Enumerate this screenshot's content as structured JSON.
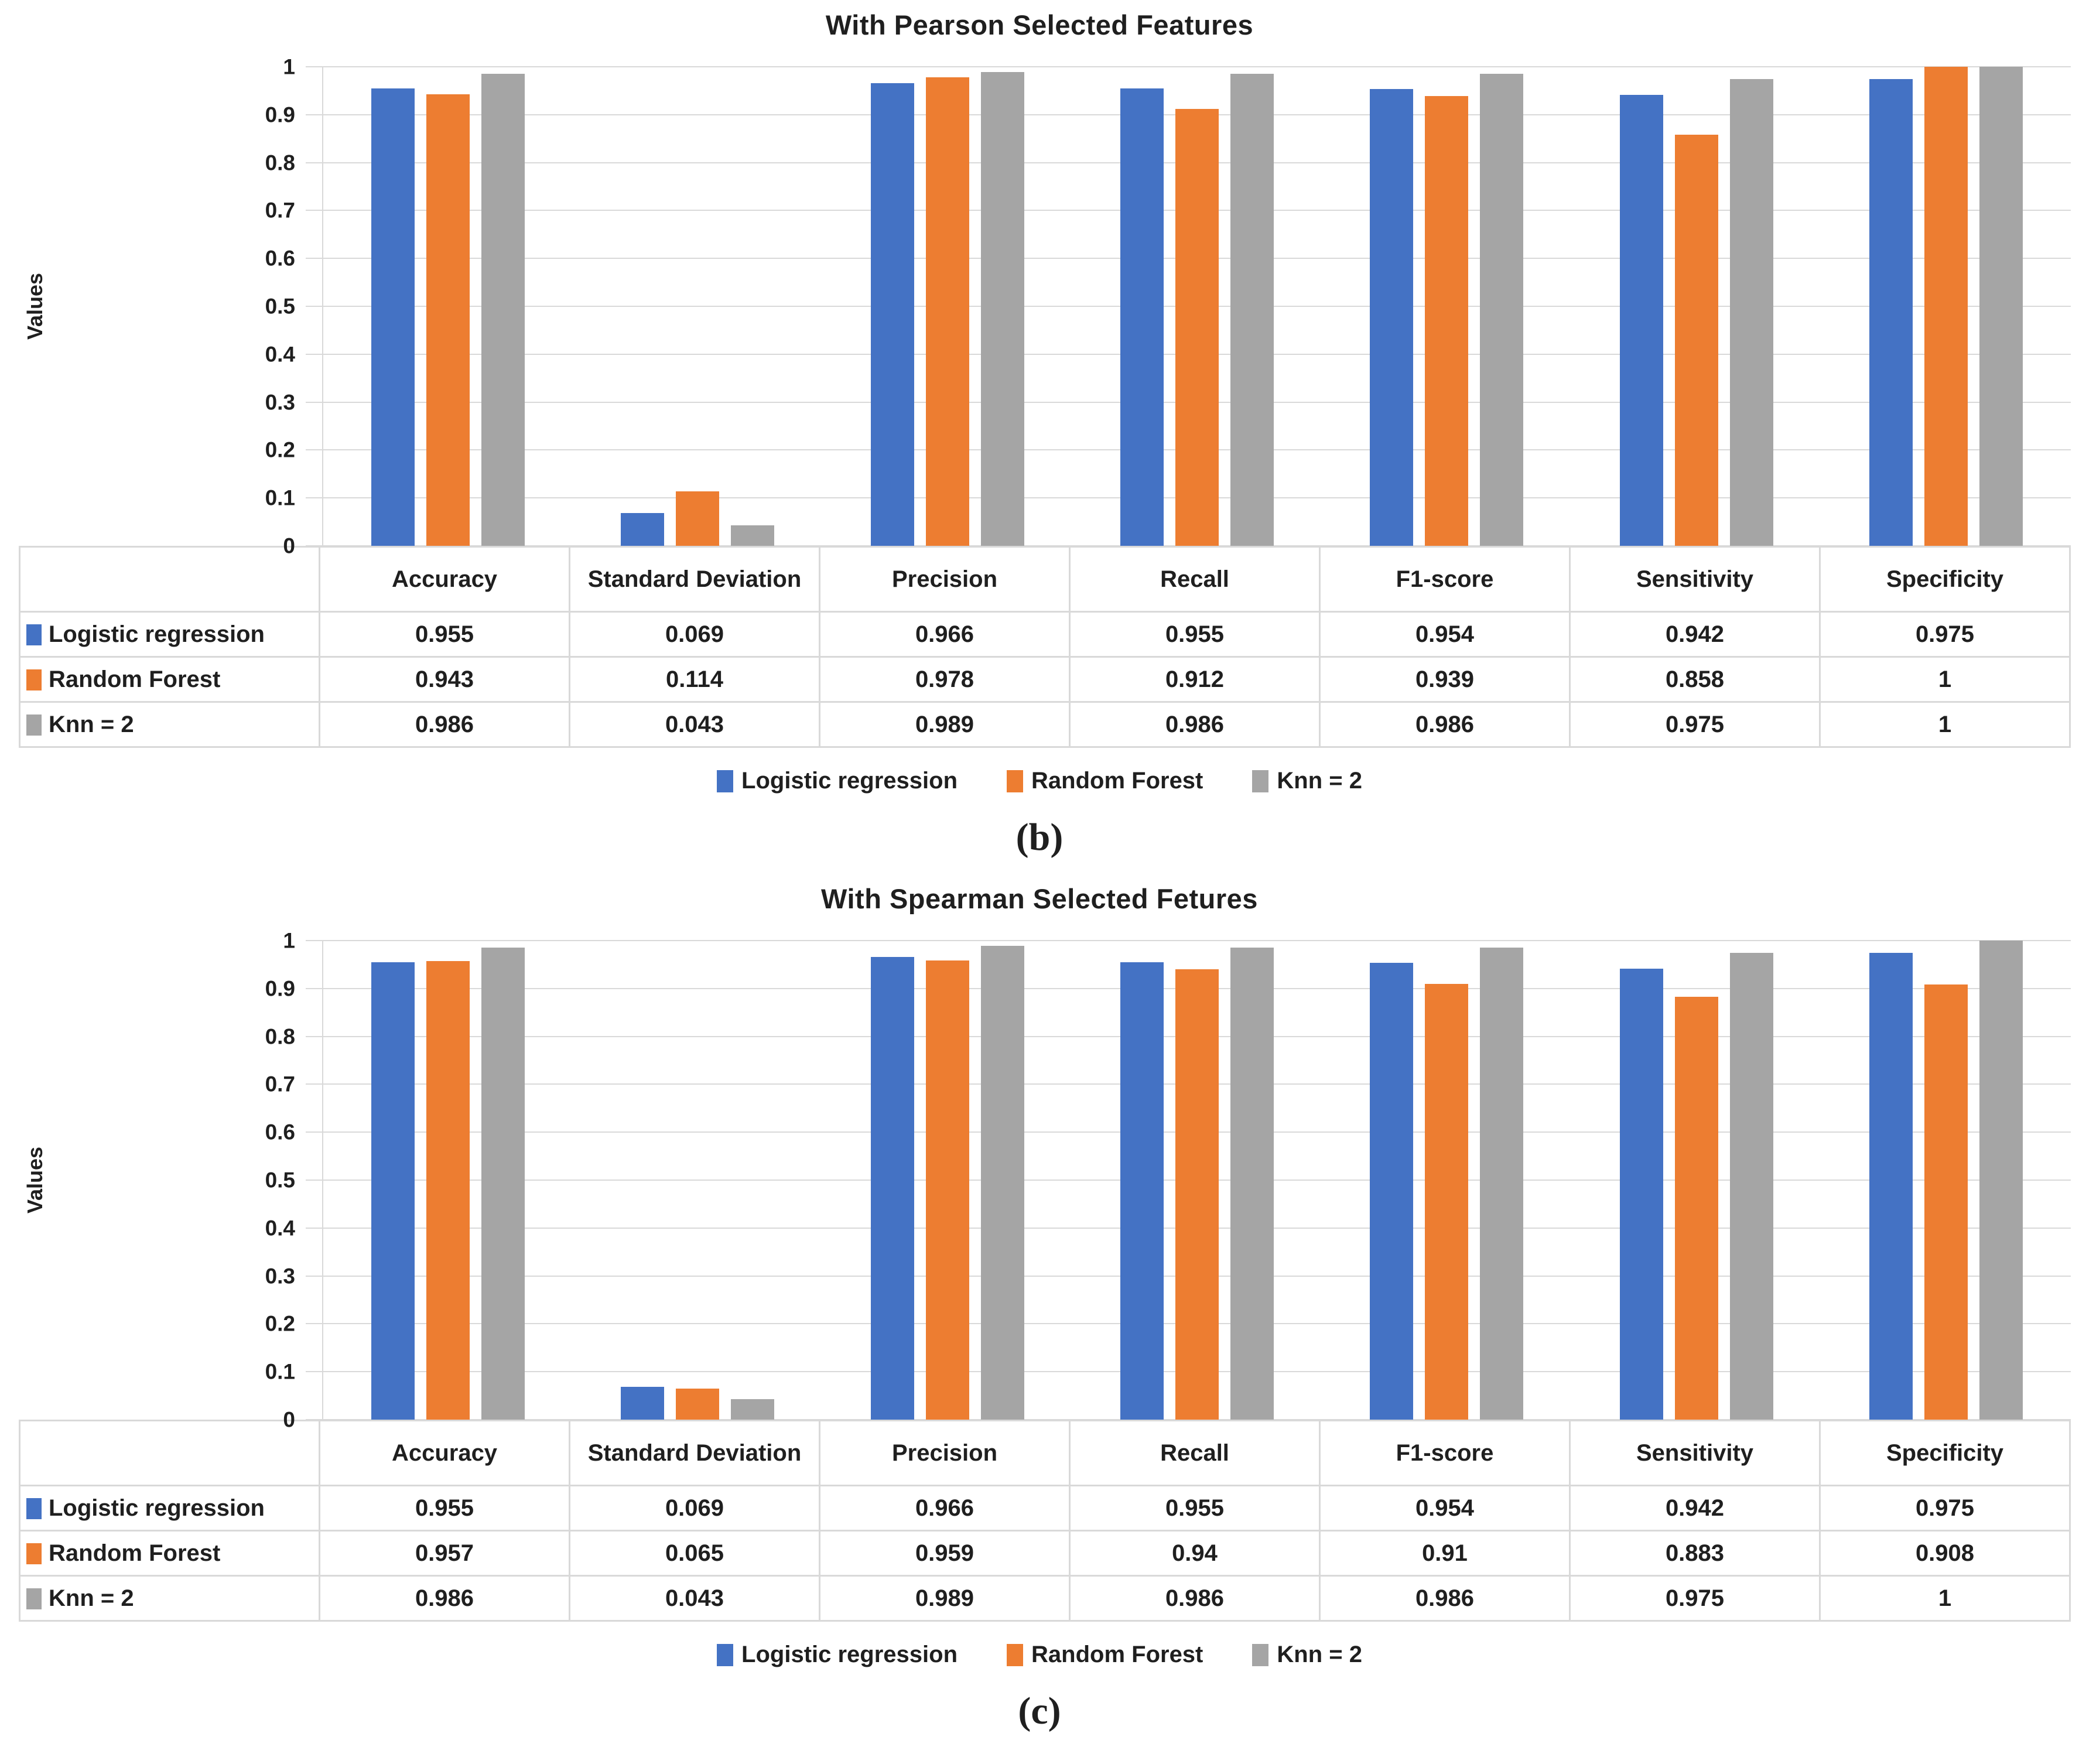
{
  "page_background": "#ffffff",
  "text_color": "#1f1f1f",
  "grid_color": "#d9d9d9",
  "sub_labels": [
    "(b)",
    "(c)"
  ],
  "chart_data": [
    {
      "type": "bar",
      "title": "With Pearson Selected Features",
      "xlabel": "",
      "ylabel": "Values",
      "ylim": [
        0,
        1
      ],
      "yticks": [
        0,
        0.1,
        0.2,
        0.3,
        0.4,
        0.5,
        0.6,
        0.7,
        0.8,
        0.9,
        1
      ],
      "grid": true,
      "legend_position": "bottom",
      "categories": [
        "Accuracy",
        "Standard Deviation",
        "Precision",
        "Recall",
        "F1-score",
        "Sensitivity",
        "Specificity"
      ],
      "series": [
        {
          "name": "Logistic regression",
          "color": "#4472C4",
          "values": [
            0.955,
            0.069,
            0.966,
            0.955,
            0.954,
            0.942,
            0.975
          ]
        },
        {
          "name": "Random Forest",
          "color": "#ED7D31",
          "values": [
            0.943,
            0.114,
            0.978,
            0.912,
            0.939,
            0.858,
            1
          ]
        },
        {
          "name": "Knn = 2",
          "color": "#A5A5A5",
          "values": [
            0.986,
            0.043,
            0.989,
            0.986,
            0.986,
            0.975,
            1
          ]
        }
      ]
    },
    {
      "type": "bar",
      "title": "With Spearman Selected Fetures",
      "xlabel": "",
      "ylabel": "Values",
      "ylim": [
        0,
        1
      ],
      "yticks": [
        0,
        0.1,
        0.2,
        0.3,
        0.4,
        0.5,
        0.6,
        0.7,
        0.8,
        0.9,
        1
      ],
      "grid": true,
      "legend_position": "bottom",
      "categories": [
        "Accuracy",
        "Standard Deviation",
        "Precision",
        "Recall",
        "F1-score",
        "Sensitivity",
        "Specificity"
      ],
      "series": [
        {
          "name": "Logistic regression",
          "color": "#4472C4",
          "values": [
            0.955,
            0.069,
            0.966,
            0.955,
            0.954,
            0.942,
            0.975
          ]
        },
        {
          "name": "Random Forest",
          "color": "#ED7D31",
          "values": [
            0.957,
            0.065,
            0.959,
            0.94,
            0.91,
            0.883,
            0.908
          ]
        },
        {
          "name": "Knn = 2",
          "color": "#A5A5A5",
          "values": [
            0.986,
            0.043,
            0.989,
            0.986,
            0.986,
            0.975,
            1
          ]
        }
      ]
    }
  ]
}
